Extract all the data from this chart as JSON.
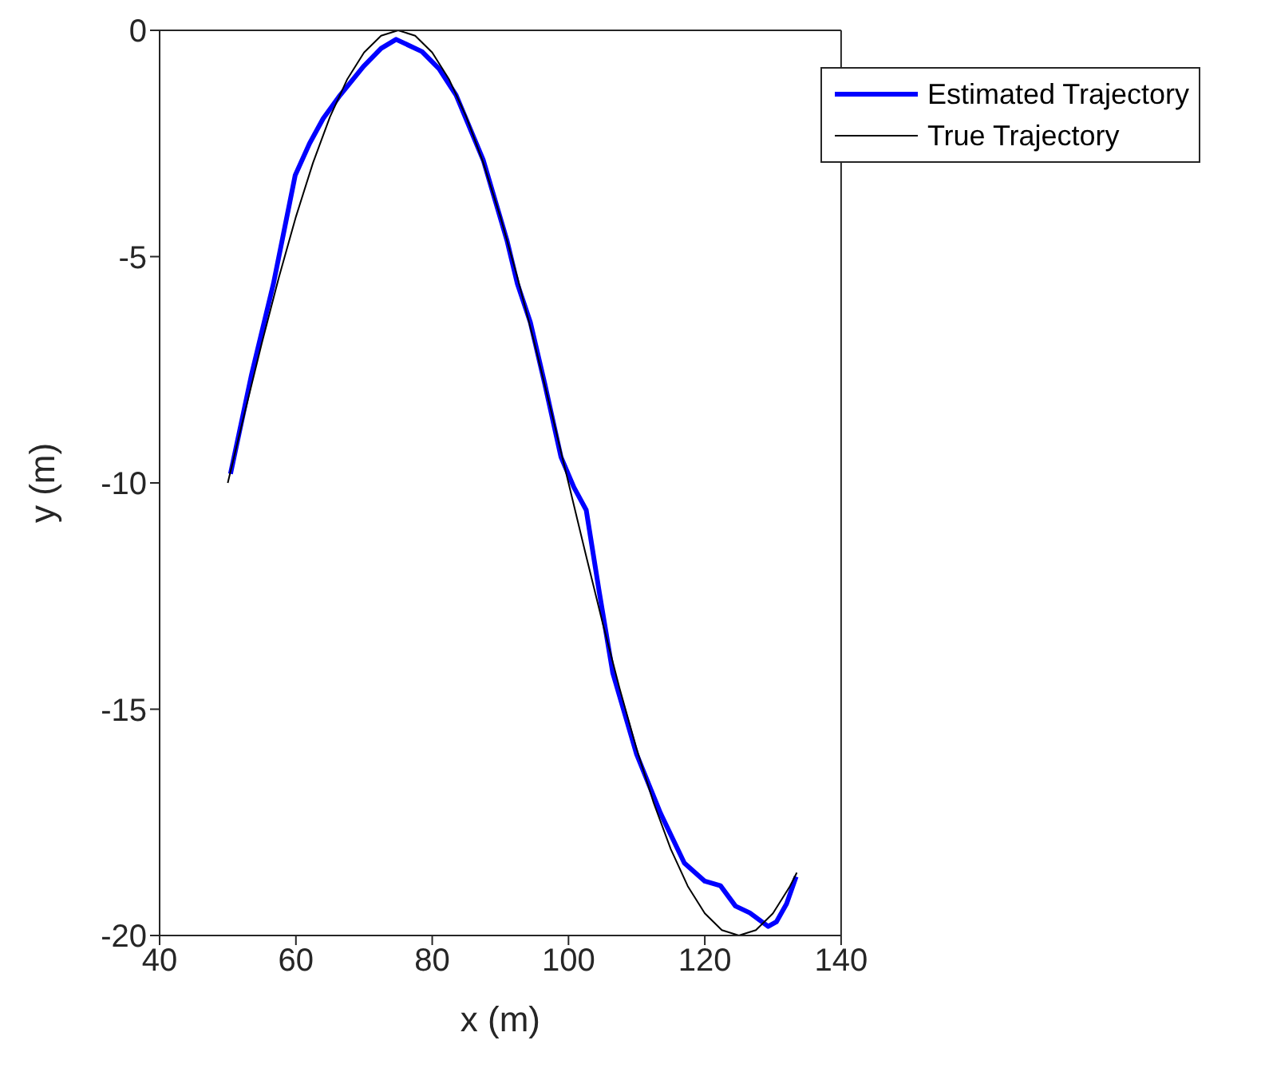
{
  "chart_data": {
    "type": "line",
    "xlabel": "x (m)",
    "ylabel": "y (m)",
    "xlim": [
      40,
      140
    ],
    "xticks": [
      40,
      60,
      80,
      100,
      120,
      140
    ],
    "ylim": [
      -20,
      0
    ],
    "yticks": [
      -20,
      -15,
      -10,
      -5,
      0
    ],
    "grid": false,
    "legend": "top right",
    "marker": "none",
    "line_style": "solid",
    "series": [
      {
        "name": "Estimated Trajectory",
        "color": "#0000ff",
        "x": [
          50.4,
          53.5,
          56.7,
          59.9,
          62,
          64,
          66.5,
          69.9,
          72.5,
          74.7,
          78.5,
          81,
          83.5,
          87.5,
          91,
          92.5,
          94.4,
          96.5,
          98.9,
          100.8,
          102.6,
          104.5,
          106.5,
          110,
          113.5,
          117,
          120,
          122.3,
          124.5,
          126.6,
          129.3,
          130.5,
          132,
          133.4
        ],
        "values": [
          -9.8,
          -7.6,
          -5.6,
          -3.2,
          -2.5,
          -1.95,
          -1.43,
          -0.8,
          -0.4,
          -0.2,
          -0.47,
          -0.85,
          -1.43,
          -2.87,
          -4.66,
          -5.6,
          -6.45,
          -7.8,
          -9.43,
          -10.1,
          -10.6,
          -12.4,
          -14.2,
          -16,
          -17.3,
          -18.4,
          -18.8,
          -18.9,
          -19.35,
          -19.5,
          -19.8,
          -19.7,
          -19.3,
          -18.7
        ]
      },
      {
        "name": "True Trajectory",
        "color": "#000000",
        "x": [
          50,
          52.5,
          55,
          57.5,
          60,
          62.5,
          65,
          67.5,
          70,
          72.5,
          75,
          77.5,
          80,
          82.5,
          85,
          87.5,
          90,
          92.5,
          95,
          97.5,
          100,
          102.5,
          105,
          107.5,
          110,
          112.5,
          115,
          117.5,
          120,
          122.5,
          125,
          127.5,
          130,
          132.5,
          133.5
        ],
        "values": [
          -10,
          -8.44,
          -6.91,
          -5.46,
          -4.12,
          -2.93,
          -1.91,
          -1.09,
          -0.49,
          -0.12,
          0,
          -0.12,
          -0.49,
          -1.09,
          -1.91,
          -2.93,
          -4.12,
          -5.46,
          -6.91,
          -8.44,
          -10,
          -11.56,
          -13.09,
          -14.54,
          -15.88,
          -17.07,
          -18.09,
          -18.91,
          -19.51,
          -19.88,
          -20,
          -19.88,
          -19.51,
          -18.91,
          -18.61
        ]
      }
    ]
  }
}
